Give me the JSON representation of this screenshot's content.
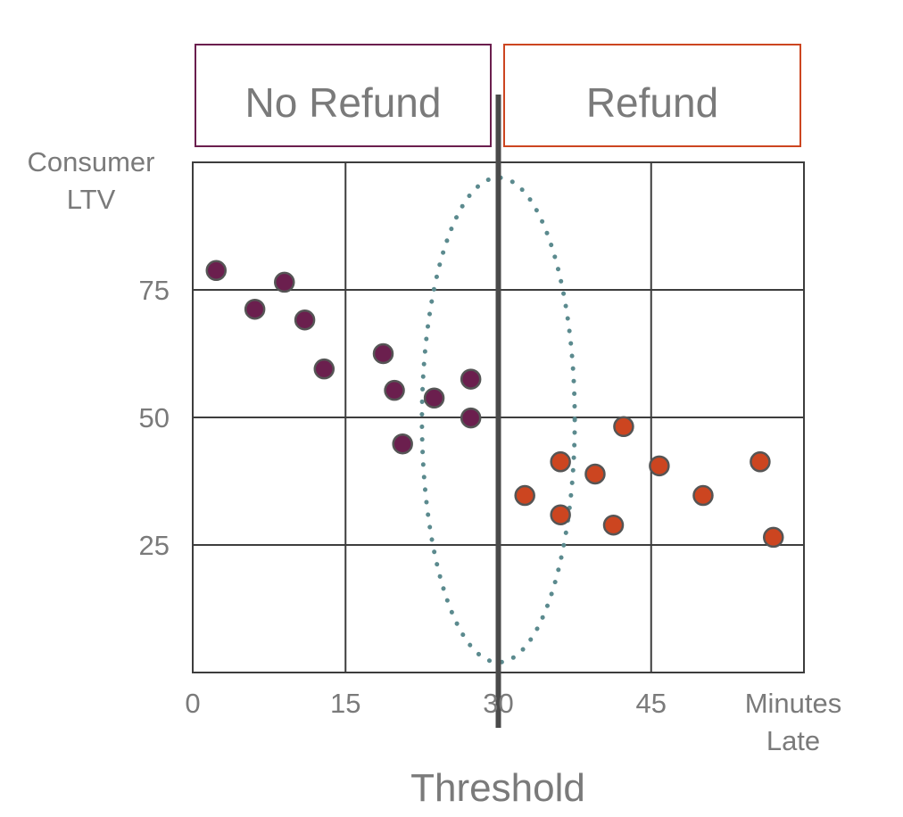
{
  "chart_data": {
    "type": "scatter",
    "title": "",
    "xlabel": "Minutes\nLate",
    "ylabel": "Consumer\nLTV",
    "xlim": [
      0,
      60
    ],
    "ylim": [
      0,
      100
    ],
    "x_ticks": [
      0,
      15,
      30,
      45
    ],
    "y_ticks": [
      25,
      50,
      75
    ],
    "grid": true,
    "series": [
      {
        "name": "No Refund",
        "color": "#6b1f4e",
        "points": [
          {
            "x": 2.3,
            "y": 78.8
          },
          {
            "x": 6.1,
            "y": 71.2
          },
          {
            "x": 9.0,
            "y": 76.5
          },
          {
            "x": 11.0,
            "y": 69.1
          },
          {
            "x": 12.9,
            "y": 59.5
          },
          {
            "x": 18.7,
            "y": 62.5
          },
          {
            "x": 19.8,
            "y": 55.3
          },
          {
            "x": 23.7,
            "y": 53.8
          },
          {
            "x": 27.3,
            "y": 57.5
          },
          {
            "x": 20.6,
            "y": 44.8
          },
          {
            "x": 27.3,
            "y": 49.9
          }
        ]
      },
      {
        "name": "Refund",
        "color": "#cc4520",
        "points": [
          {
            "x": 32.6,
            "y": 34.7
          },
          {
            "x": 36.1,
            "y": 41.3
          },
          {
            "x": 36.1,
            "y": 30.9
          },
          {
            "x": 39.5,
            "y": 38.9
          },
          {
            "x": 41.3,
            "y": 28.9
          },
          {
            "x": 42.3,
            "y": 48.2
          },
          {
            "x": 45.8,
            "y": 40.5
          },
          {
            "x": 50.1,
            "y": 34.7
          },
          {
            "x": 55.7,
            "y": 41.3
          },
          {
            "x": 57.0,
            "y": 26.5
          }
        ]
      }
    ],
    "threshold": {
      "x": 30,
      "label": "Threshold"
    },
    "regions": [
      {
        "label": "No Refund",
        "color": "#6b1f4e"
      },
      {
        "label": "Refund",
        "color": "#cc4520"
      }
    ],
    "threshold_band": {
      "x_center": 30,
      "x_halfwidth": 7.5,
      "y_min": 2,
      "y_max": 97,
      "color": "#5b8a8e"
    }
  }
}
